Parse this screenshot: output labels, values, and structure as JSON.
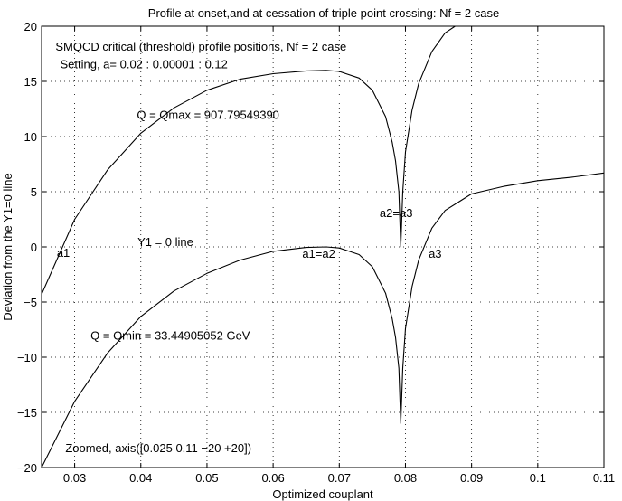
{
  "chart_data": {
    "type": "line",
    "title": "Profile at onset,and at cessation of triple point crossing: Nf = 2 case",
    "xlabel": "Optimized couplant",
    "ylabel": "Deviation from the Y1=0 line",
    "xlim": [
      0.025,
      0.11
    ],
    "ylim": [
      -20,
      20
    ],
    "xticks": [
      0.03,
      0.04,
      0.05,
      0.06,
      0.07,
      0.08,
      0.09,
      0.1,
      0.11
    ],
    "yticks": [
      -20,
      -15,
      -10,
      -5,
      0,
      5,
      10,
      15,
      20
    ],
    "grid": true,
    "series": [
      {
        "x": [
          0.025,
          0.03,
          0.035,
          0.04,
          0.045,
          0.05,
          0.055,
          0.06,
          0.065,
          0.068,
          0.07,
          0.073,
          0.075,
          0.077,
          0.078,
          0.0785,
          0.079,
          0.0793,
          0.0796,
          0.08,
          0.081,
          0.082,
          0.084,
          0.086,
          0.0875
        ],
        "y": [
          -4.3,
          2.5,
          7.0,
          10.3,
          12.6,
          14.2,
          15.2,
          15.7,
          15.95,
          16.0,
          15.9,
          15.3,
          14.2,
          11.8,
          9.5,
          7.8,
          5.0,
          0.0,
          5.0,
          8.6,
          12.4,
          14.8,
          17.7,
          19.4,
          20.0
        ]
      },
      {
        "x": [
          0.025,
          0.03,
          0.035,
          0.04,
          0.045,
          0.05,
          0.055,
          0.06,
          0.065,
          0.068,
          0.07,
          0.073,
          0.075,
          0.077,
          0.078,
          0.0785,
          0.079,
          0.0793,
          0.0796,
          0.08,
          0.081,
          0.082,
          0.084,
          0.086,
          0.09,
          0.095,
          0.1,
          0.105,
          0.11
        ],
        "y": [
          -20.0,
          -14.0,
          -9.6,
          -6.3,
          -4.0,
          -2.4,
          -1.2,
          -0.4,
          -0.05,
          0.0,
          -0.1,
          -0.7,
          -1.8,
          -4.2,
          -6.5,
          -8.2,
          -11.0,
          -16.0,
          -11.0,
          -7.4,
          -3.6,
          -1.2,
          1.7,
          3.3,
          4.8,
          5.5,
          6.0,
          6.3,
          6.7
        ]
      }
    ],
    "annotations": [
      {
        "text": "SMQCD critical (threshold) profile positions,  Nf = 2 case",
        "x": 0.0271,
        "y": 17.8
      },
      {
        "text": "Setting, a= 0.02 : 0.00001 : 0.12",
        "x": 0.0278,
        "y": 16.2
      },
      {
        "text": "Q = Qmax = 907.79549390",
        "x": 0.0394,
        "y": 11.6
      },
      {
        "text": "a1",
        "x": 0.0273,
        "y": -0.9
      },
      {
        "text": "Y1 = 0 line",
        "x": 0.0395,
        "y": 0.1
      },
      {
        "text": "a1=a2",
        "x": 0.0644,
        "y": -1.0
      },
      {
        "text": "a2=a3",
        "x": 0.0761,
        "y": 2.7
      },
      {
        "text": "a3",
        "x": 0.0835,
        "y": -1.0
      },
      {
        "text": "Q = Qmin = 33.44905052 GeV",
        "x": 0.0324,
        "y": -8.4
      },
      {
        "text": "Zoomed, axis([0.025 0.11 −20 +20])",
        "x": 0.0286,
        "y": -18.6
      }
    ]
  }
}
